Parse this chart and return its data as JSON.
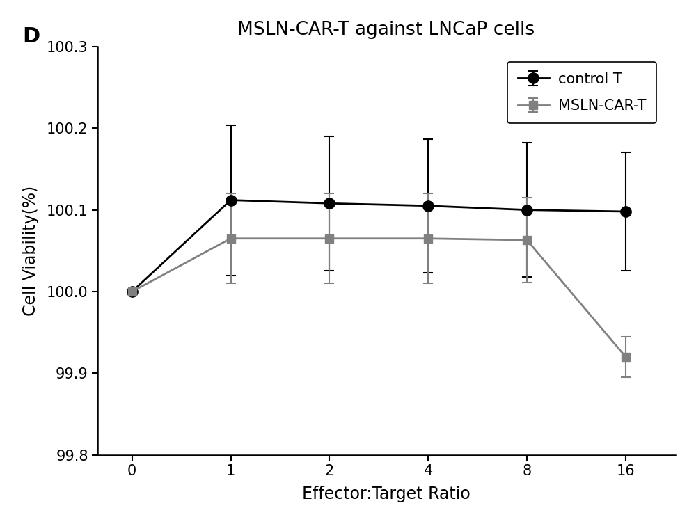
{
  "title": "MSLN-CAR-T against LNCaP cells",
  "xlabel": "Effector:Target Ratio",
  "ylabel": "Cell Viability(%)",
  "panel_label": "D",
  "x_positions": [
    0,
    1,
    2,
    3,
    4,
    5
  ],
  "x_tick_labels": [
    "0",
    "1",
    "2",
    "4",
    "8",
    "16"
  ],
  "control_T_y": [
    100.0,
    100.112,
    100.108,
    100.105,
    100.1,
    100.098
  ],
  "control_T_yerr": [
    0.0,
    0.092,
    0.082,
    0.082,
    0.082,
    0.072
  ],
  "msln_car_t_y": [
    100.0,
    100.065,
    100.065,
    100.065,
    100.063,
    99.92
  ],
  "msln_car_t_yerr": [
    0.0,
    0.055,
    0.055,
    0.055,
    0.052,
    0.025
  ],
  "ylim": [
    99.8,
    100.3
  ],
  "yticks": [
    99.8,
    99.9,
    100.0,
    100.1,
    100.2,
    100.3
  ],
  "xlim": [
    -0.35,
    5.5
  ],
  "control_T_color": "#000000",
  "msln_car_t_color": "#808080",
  "background_color": "#ffffff",
  "legend_labels": [
    "control T",
    "MSLN-CAR-T"
  ],
  "title_fontsize": 19,
  "label_fontsize": 17,
  "tick_fontsize": 15,
  "legend_fontsize": 15,
  "panel_label_fontsize": 22,
  "linewidth": 2.0,
  "markersize_circle": 11,
  "markersize_square": 9,
  "capsize": 5,
  "capthick": 1.5,
  "elinewidth": 1.5
}
